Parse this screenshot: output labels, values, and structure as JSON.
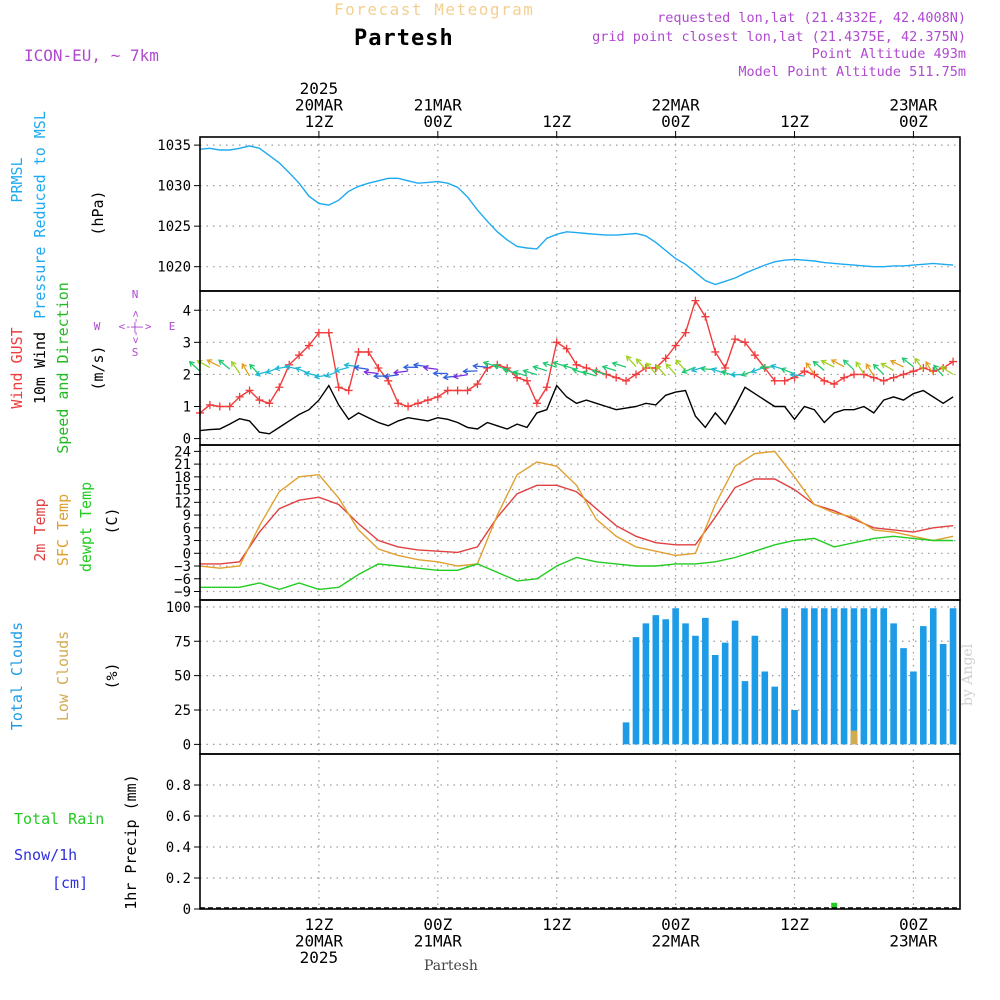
{
  "header": {
    "product": "Forecast Meteogram",
    "location": "Partesh",
    "model": "ICON-EU, ~ 7km",
    "requested": "requested lon,lat (21.4332E, 42.4008N)",
    "grid": "grid point closest lon,lat (21.4375E, 42.375N)",
    "point_alt": "Point Altitude 493m",
    "model_alt": "Model Point Altitude 511.75m",
    "footer_location": "Partesh",
    "credit": "by Angel"
  },
  "colors": {
    "pressure": "#1eaaf0",
    "gust": "#f03c3c",
    "wind": "#000000",
    "arrows_label": "#22bb22",
    "temp2m": "#e04040",
    "sfc": "#e0a030",
    "dewpt": "#22cc22",
    "total_cloud": "#1e9be6",
    "low_cloud": "#d2aa50",
    "rain": "#22cc22",
    "snow": "#3030e0",
    "purple": "#b04ad0"
  },
  "time_axis": {
    "top_labels": [
      {
        "lines": [
          "2025",
          "20MAR",
          "12Z"
        ],
        "hour": 12
      },
      {
        "lines": [
          "21MAR",
          "00Z"
        ],
        "hour": 24
      },
      {
        "lines": [
          "12Z"
        ],
        "hour": 36
      },
      {
        "lines": [
          "22MAR",
          "00Z"
        ],
        "hour": 48
      },
      {
        "lines": [
          "12Z"
        ],
        "hour": 60
      },
      {
        "lines": [
          "23MAR",
          "00Z"
        ],
        "hour": 72
      }
    ],
    "bottom_labels": [
      {
        "lines": [
          "12Z",
          "20MAR",
          "2025"
        ],
        "hour": 12
      },
      {
        "lines": [
          "00Z",
          "21MAR"
        ],
        "hour": 24
      },
      {
        "lines": [
          "12Z"
        ],
        "hour": 36
      },
      {
        "lines": [
          "00Z",
          "22MAR"
        ],
        "hour": 48
      },
      {
        "lines": [
          "12Z"
        ],
        "hour": 60
      },
      {
        "lines": [
          "00Z",
          "23MAR"
        ],
        "hour": 72
      }
    ]
  },
  "compass": {
    "n": "N",
    "s": "S",
    "w": "W",
    "e": "E",
    "arrow": "<-|->"
  },
  "chart_data": [
    {
      "type": "line",
      "name": "pressure",
      "ylabel_lines": [
        "PRMSL",
        "Pressure Reduced to MSL"
      ],
      "unit": "(hPa)",
      "ylim": [
        1017,
        1036
      ],
      "yticks": [
        1020,
        1025,
        1030,
        1035
      ],
      "grid": true,
      "series": [
        {
          "name": "PRMSL",
          "x": [
            0,
            1,
            2,
            3,
            4,
            5,
            6,
            7,
            8,
            9,
            10,
            11,
            12,
            13,
            14,
            15,
            16,
            17,
            18,
            19,
            20,
            21,
            22,
            23,
            24,
            25,
            26,
            27,
            28,
            29,
            30,
            31,
            32,
            33,
            34,
            35,
            36,
            37,
            38,
            39,
            40,
            41,
            42,
            43,
            44,
            45,
            46,
            47,
            48,
            49,
            50,
            51,
            52,
            53,
            54,
            55,
            56,
            57,
            58,
            59,
            60,
            61,
            62,
            63,
            64,
            65,
            66,
            67,
            68,
            69,
            70,
            71,
            72,
            73,
            74,
            75,
            76
          ],
          "values": [
            1034.5,
            1034.6,
            1034.4,
            1034.4,
            1034.6,
            1034.9,
            1034.6,
            1033.7,
            1032.8,
            1031.6,
            1030.3,
            1028.7,
            1027.8,
            1027.6,
            1028.2,
            1029.3,
            1029.9,
            1030.3,
            1030.6,
            1030.9,
            1030.9,
            1030.6,
            1030.3,
            1030.4,
            1030.5,
            1030.3,
            1029.8,
            1028.6,
            1027.0,
            1025.6,
            1024.3,
            1023.3,
            1022.5,
            1022.3,
            1022.2,
            1023.5,
            1024.0,
            1024.3,
            1024.2,
            1024.1,
            1024.0,
            1023.9,
            1023.9,
            1024.0,
            1024.1,
            1023.8,
            1023.0,
            1022.0,
            1021.0,
            1020.3,
            1019.3,
            1018.3,
            1017.8,
            1018.2,
            1018.6,
            1019.2,
            1019.7,
            1020.2,
            1020.6,
            1020.8,
            1020.9,
            1020.8,
            1020.7,
            1020.5,
            1020.4,
            1020.3,
            1020.2,
            1020.1,
            1020.0,
            1020.0,
            1020.1,
            1020.1,
            1020.2,
            1020.3,
            1020.4,
            1020.3,
            1020.2
          ]
        }
      ]
    },
    {
      "type": "line",
      "name": "wind",
      "ylabel_lines": [
        "Wind GUST",
        "10m Wind",
        "Speed and Direction"
      ],
      "unit": "(m/s)",
      "ylim": [
        -0.2,
        4.6
      ],
      "yticks": [
        0,
        1,
        2,
        3,
        4
      ],
      "grid": true,
      "series": [
        {
          "name": "Wind GUST",
          "x": [
            0,
            1,
            2,
            3,
            4,
            5,
            6,
            7,
            8,
            9,
            10,
            11,
            12,
            13,
            14,
            15,
            16,
            17,
            18,
            19,
            20,
            21,
            22,
            23,
            24,
            25,
            26,
            27,
            28,
            29,
            30,
            31,
            32,
            33,
            34,
            35,
            36,
            37,
            38,
            39,
            40,
            41,
            42,
            43,
            44,
            45,
            46,
            47,
            48,
            49,
            50,
            51,
            52,
            53,
            54,
            55,
            56,
            57,
            58,
            59,
            60,
            61,
            62,
            63,
            64,
            65,
            66,
            67,
            68,
            69,
            70,
            71,
            72,
            73,
            74,
            75,
            76
          ],
          "values": [
            0.8,
            1.05,
            1.0,
            1.0,
            1.3,
            1.5,
            1.2,
            1.1,
            1.6,
            2.3,
            2.6,
            2.9,
            3.3,
            3.3,
            1.6,
            1.5,
            2.7,
            2.7,
            2.2,
            1.8,
            1.1,
            1.0,
            1.1,
            1.2,
            1.3,
            1.5,
            1.5,
            1.5,
            1.7,
            2.2,
            2.3,
            2.2,
            1.9,
            1.8,
            1.1,
            1.6,
            3.0,
            2.8,
            2.3,
            2.2,
            2.1,
            2.0,
            1.9,
            1.8,
            2.0,
            2.2,
            2.2,
            2.5,
            2.9,
            3.3,
            4.3,
            3.8,
            2.7,
            2.2,
            3.1,
            3.0,
            2.6,
            2.2,
            1.8,
            1.8,
            1.9,
            2.1,
            2.0,
            1.8,
            1.7,
            1.9,
            2.0,
            2.0,
            1.9,
            1.8,
            1.9,
            2.0,
            2.1,
            2.2,
            2.1,
            2.2,
            2.4
          ]
        },
        {
          "name": "10m Wind",
          "x": [
            0,
            1,
            2,
            3,
            4,
            5,
            6,
            7,
            8,
            9,
            10,
            11,
            12,
            13,
            14,
            15,
            16,
            17,
            18,
            19,
            20,
            21,
            22,
            23,
            24,
            25,
            26,
            27,
            28,
            29,
            30,
            31,
            32,
            33,
            34,
            35,
            36,
            37,
            38,
            39,
            40,
            41,
            42,
            43,
            44,
            45,
            46,
            47,
            48,
            49,
            50,
            51,
            52,
            53,
            54,
            55,
            56,
            57,
            58,
            59,
            60,
            61,
            62,
            63,
            64,
            65,
            66,
            67,
            68,
            69,
            70,
            71,
            72,
            73,
            74,
            75,
            76
          ],
          "values": [
            0.25,
            0.28,
            0.3,
            0.45,
            0.62,
            0.55,
            0.2,
            0.15,
            0.35,
            0.55,
            0.75,
            0.9,
            1.2,
            1.65,
            1.05,
            0.6,
            0.8,
            0.65,
            0.5,
            0.4,
            0.55,
            0.65,
            0.6,
            0.55,
            0.65,
            0.6,
            0.5,
            0.35,
            0.3,
            0.5,
            0.4,
            0.3,
            0.45,
            0.35,
            0.8,
            0.9,
            1.65,
            1.3,
            1.1,
            1.2,
            1.1,
            1.0,
            0.9,
            0.95,
            1.0,
            1.1,
            1.05,
            1.35,
            1.45,
            1.5,
            0.7,
            0.35,
            0.8,
            0.45,
            1.0,
            1.6,
            1.4,
            1.2,
            1.0,
            1.0,
            0.6,
            1.0,
            0.9,
            0.5,
            0.8,
            0.9,
            0.9,
            1.0,
            0.8,
            1.2,
            1.3,
            1.2,
            1.4,
            1.5,
            1.3,
            1.1,
            1.3
          ]
        }
      ]
    },
    {
      "type": "line",
      "name": "temperature",
      "ylabel_lines": [
        "2m Temp",
        "SFC Temp",
        "dewpt Temp"
      ],
      "unit": "(C)",
      "ylim": [
        -11,
        25.5
      ],
      "yticks": [
        -9,
        -6,
        -3,
        0,
        3,
        6,
        9,
        12,
        15,
        18,
        21,
        24
      ],
      "grid": true,
      "series": [
        {
          "name": "2m Temp",
          "x": [
            0,
            2,
            4,
            6,
            8,
            10,
            12,
            14,
            16,
            18,
            20,
            22,
            24,
            26,
            28,
            30,
            32,
            34,
            36,
            38,
            40,
            42,
            44,
            46,
            48,
            50,
            52,
            54,
            56,
            58,
            60,
            62,
            64,
            66,
            68,
            70,
            72,
            74,
            76
          ],
          "values": [
            -2.5,
            -2.5,
            -2.0,
            5.0,
            10.5,
            12.5,
            13.2,
            11.5,
            7.0,
            3.0,
            1.5,
            0.8,
            0.5,
            0.2,
            1.5,
            8.5,
            14.0,
            16.0,
            16.0,
            14.5,
            10.5,
            6.5,
            4.0,
            2.5,
            2.0,
            2.0,
            8.5,
            15.5,
            17.5,
            17.5,
            15.0,
            11.5,
            10.0,
            8.0,
            6.0,
            5.5,
            5.0,
            6.0,
            6.5
          ]
        },
        {
          "name": "SFC Temp",
          "x": [
            0,
            2,
            4,
            6,
            8,
            10,
            12,
            14,
            16,
            18,
            20,
            22,
            24,
            26,
            28,
            30,
            32,
            34,
            36,
            38,
            40,
            42,
            44,
            46,
            48,
            50,
            52,
            54,
            56,
            58,
            60,
            62,
            64,
            66,
            68,
            70,
            72,
            74,
            76
          ],
          "values": [
            -3.0,
            -3.5,
            -3.0,
            6.5,
            14.5,
            18.0,
            18.5,
            13.0,
            5.5,
            1.0,
            -0.5,
            -1.5,
            -2.0,
            -3.0,
            -2.5,
            9.0,
            18.5,
            21.5,
            20.5,
            16.0,
            8.0,
            4.0,
            1.5,
            0.5,
            -0.5,
            0.0,
            11.5,
            20.5,
            23.5,
            24.0,
            18.0,
            11.5,
            9.5,
            8.5,
            5.5,
            5.0,
            4.0,
            3.0,
            4.0
          ]
        },
        {
          "name": "dewpt Temp",
          "x": [
            0,
            2,
            4,
            6,
            8,
            10,
            12,
            14,
            16,
            18,
            20,
            22,
            24,
            26,
            28,
            30,
            32,
            34,
            36,
            38,
            40,
            42,
            44,
            46,
            48,
            50,
            52,
            54,
            56,
            58,
            60,
            62,
            64,
            66,
            68,
            70,
            72,
            74,
            76
          ],
          "values": [
            -8.0,
            -8.0,
            -8.0,
            -7.0,
            -8.5,
            -7.0,
            -8.5,
            -8.0,
            -5.0,
            -2.5,
            -3.0,
            -3.5,
            -4.0,
            -4.0,
            -2.5,
            -4.5,
            -6.5,
            -6.0,
            -3.0,
            -1.0,
            -2.0,
            -2.5,
            -3.0,
            -3.0,
            -2.5,
            -2.5,
            -2.0,
            -1.0,
            0.5,
            2.0,
            3.0,
            3.5,
            1.5,
            2.5,
            3.5,
            4.0,
            3.5,
            3.0,
            3.0
          ]
        }
      ]
    },
    {
      "type": "bar",
      "name": "clouds",
      "ylabel_lines": [
        "Total Clouds",
        "Low Clouds"
      ],
      "unit": "(%)",
      "ylim": [
        -7,
        105
      ],
      "yticks": [
        0,
        25,
        50,
        75,
        100
      ],
      "grid": true,
      "series": [
        {
          "name": "Total Clouds",
          "x": [
            43,
            44,
            45,
            46,
            47,
            48,
            49,
            50,
            51,
            52,
            53,
            54,
            55,
            56,
            57,
            58,
            59,
            60,
            61,
            62,
            63,
            64,
            65,
            66,
            67,
            68,
            69,
            70,
            71,
            72,
            73,
            74,
            75,
            76
          ],
          "values": [
            16,
            78,
            88,
            94,
            91,
            99,
            88,
            79,
            92,
            65,
            74,
            90,
            46,
            79,
            53,
            42,
            99,
            25,
            99,
            99,
            99,
            99,
            99,
            99,
            99,
            99,
            99,
            88,
            70,
            53,
            86,
            99,
            73,
            99
          ]
        },
        {
          "name": "Low Clouds",
          "x": [
            66
          ],
          "values": [
            10
          ]
        }
      ]
    },
    {
      "type": "bar",
      "name": "precip",
      "ylabel_lines": [
        "Total  Rain",
        "Snow/1h",
        "[cm]",
        "1hr Precip (mm)"
      ],
      "ylim": [
        0,
        1
      ],
      "yticks": [
        0,
        0.2,
        0.4,
        0.6,
        0.8
      ],
      "ytick_labels": [
        "0",
        "0.2",
        "0.4",
        "0.6",
        "0.8"
      ],
      "grid": true,
      "series": [
        {
          "name": "Total Rain",
          "x": [
            64
          ],
          "values": [
            0.04
          ]
        }
      ]
    }
  ]
}
